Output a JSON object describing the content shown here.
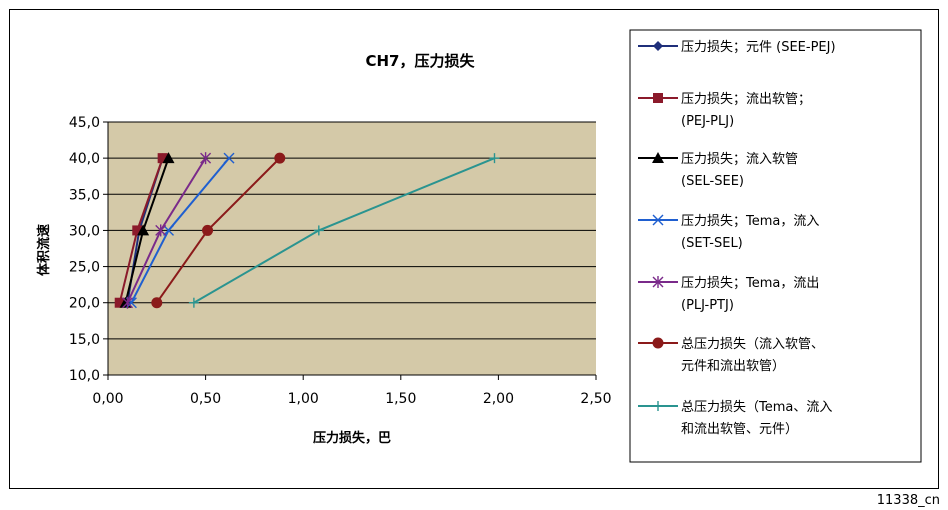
{
  "figure_id": "11338_cn",
  "chart_data": {
    "type": "line",
    "title": "CH7，压力损失",
    "xlabel": "压力损失，巴",
    "ylabel": "体积流速",
    "xlim": [
      0,
      2.5
    ],
    "ylim": [
      10,
      45
    ],
    "x_ticks": [
      "0,00",
      "0,50",
      "1,00",
      "1,50",
      "2,00",
      "2,50"
    ],
    "x_tick_values": [
      0,
      0.5,
      1,
      1.5,
      2,
      2.5
    ],
    "y_ticks": [
      "10,0",
      "15,0",
      "20,0",
      "25,0",
      "30,0",
      "35,0",
      "40,0",
      "45,0"
    ],
    "y_tick_values": [
      10,
      15,
      20,
      25,
      30,
      35,
      40,
      45
    ],
    "grid": "horizontal",
    "plot_background": "#d4c9a8",
    "legend_position": "right",
    "series": [
      {
        "name_lines": [
          "压力损失；元件 (SEE-PEJ)"
        ],
        "color": "#1f2f7a",
        "marker": "diamond",
        "x": [
          0.1,
          0.16,
          0.28
        ],
        "y": [
          20,
          30,
          40
        ]
      },
      {
        "name_lines": [
          "压力损失；流出软管；",
          "(PEJ-PLJ)"
        ],
        "color": "#8b1a2b",
        "marker": "square",
        "x": [
          0.06,
          0.15,
          0.28
        ],
        "y": [
          20,
          30,
          40
        ]
      },
      {
        "name_lines": [
          "压力损失；流入软管",
          "(SEL-SEE)"
        ],
        "color": "#000000",
        "marker": "triangle",
        "x": [
          0.09,
          0.18,
          0.31
        ],
        "y": [
          20,
          30,
          40
        ]
      },
      {
        "name_lines": [
          "压力损失；Tema，流入",
          "(SET-SEL)"
        ],
        "color": "#1f5fd0",
        "marker": "x",
        "x": [
          0.12,
          0.31,
          0.62
        ],
        "y": [
          20,
          30,
          40
        ]
      },
      {
        "name_lines": [
          "压力损失；Tema，流出",
          "(PLJ-PTJ)"
        ],
        "color": "#7a2a8a",
        "marker": "star",
        "x": [
          0.1,
          0.27,
          0.5
        ],
        "y": [
          20,
          30,
          40
        ]
      },
      {
        "name_lines": [
          "总压力损失（流入软管、",
          "元件和流出软管）"
        ],
        "color": "#8b1a1a",
        "marker": "circle",
        "x": [
          0.25,
          0.51,
          0.88
        ],
        "y": [
          20,
          30,
          40
        ]
      },
      {
        "name_lines": [
          "总压力损失（Tema、流入",
          "和流出软管、元件）"
        ],
        "color": "#2a9490",
        "marker": "plus",
        "x": [
          0.44,
          1.08,
          1.98
        ],
        "y": [
          20,
          30,
          40
        ]
      }
    ]
  }
}
